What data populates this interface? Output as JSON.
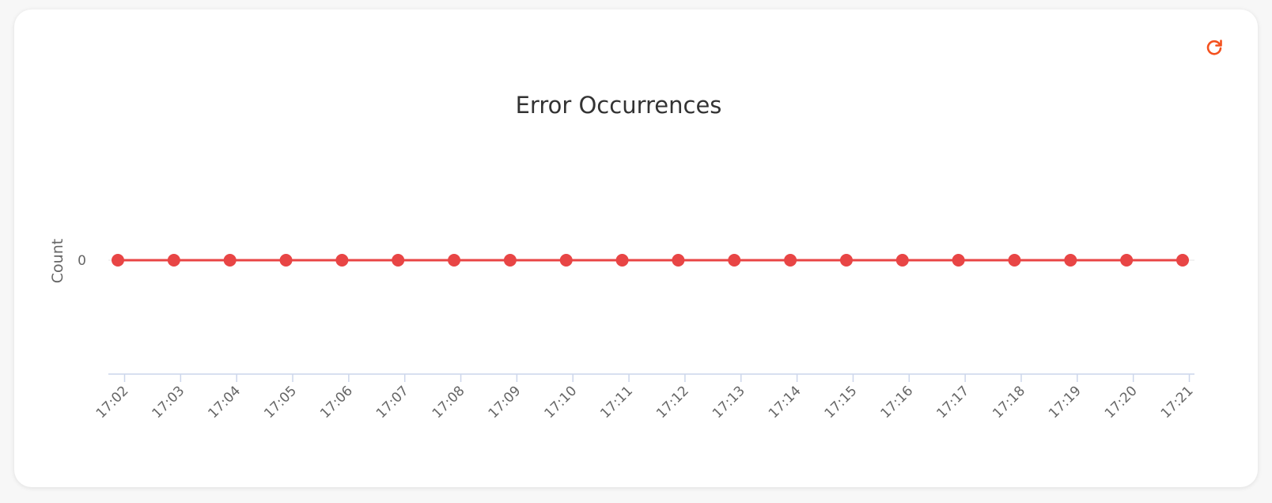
{
  "refresh": {
    "icon": "refresh-icon",
    "color": "#f4511e"
  },
  "chart_data": {
    "type": "line",
    "title": "Error Occurrences",
    "xlabel": "",
    "ylabel": "Count",
    "x": [
      "17:02",
      "17:03",
      "17:04",
      "17:05",
      "17:06",
      "17:07",
      "17:08",
      "17:09",
      "17:10",
      "17:11",
      "17:12",
      "17:13",
      "17:14",
      "17:15",
      "17:16",
      "17:17",
      "17:18",
      "17:19",
      "17:20",
      "17:21"
    ],
    "series": [
      {
        "values": [
          0,
          0,
          0,
          0,
          0,
          0,
          0,
          0,
          0,
          0,
          0,
          0,
          0,
          0,
          0,
          0,
          0,
          0,
          0,
          0
        ],
        "color": "#e84545"
      }
    ],
    "y_ticks": [
      0
    ],
    "grid": false,
    "legend": "none"
  }
}
